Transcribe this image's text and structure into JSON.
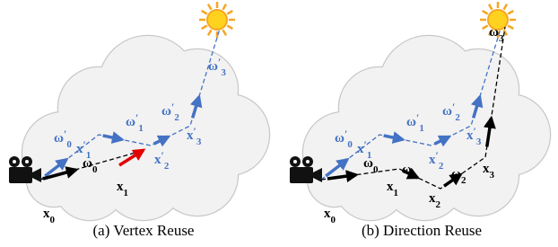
{
  "panels": [
    {
      "caption": "(a) Vertex Reuse",
      "labels": [
        {
          "base": "ω",
          "prime": "′",
          "sub": "0"
        },
        {
          "base": "x",
          "prime": "′",
          "sub": "1"
        },
        {
          "base": "ω",
          "prime": "′",
          "sub": "1"
        },
        {
          "base": "x",
          "prime": "′",
          "sub": "2"
        },
        {
          "base": "ω",
          "prime": "′",
          "sub": "2"
        },
        {
          "base": "x",
          "prime": "′",
          "sub": "3"
        },
        {
          "base": "ω",
          "prime": "′",
          "sub": "3"
        },
        {
          "base": "ω",
          "sub": "0"
        },
        {
          "base": "x",
          "sub": "1"
        },
        {
          "base": "x",
          "sub": "0"
        }
      ]
    },
    {
      "caption": "(b) Direction Reuse",
      "labels": [
        {
          "base": "ω",
          "prime": "′",
          "sub": "0"
        },
        {
          "base": "x",
          "prime": "′",
          "sub": "1"
        },
        {
          "base": "ω",
          "prime": "′",
          "sub": "1"
        },
        {
          "base": "x",
          "prime": "′",
          "sub": "2"
        },
        {
          "base": "ω",
          "prime": "′",
          "sub": "2"
        },
        {
          "base": "x",
          "prime": "′",
          "sub": "3"
        },
        {
          "base": "ω",
          "sub": "3"
        },
        {
          "base": "ω",
          "sub": "0"
        },
        {
          "base": "ω",
          "sub": "1"
        },
        {
          "base": "ω",
          "sub": "2"
        },
        {
          "base": "x",
          "sub": "1"
        },
        {
          "base": "x",
          "sub": "2"
        },
        {
          "base": "x",
          "sub": "3"
        },
        {
          "base": "x",
          "sub": "0"
        }
      ]
    }
  ]
}
